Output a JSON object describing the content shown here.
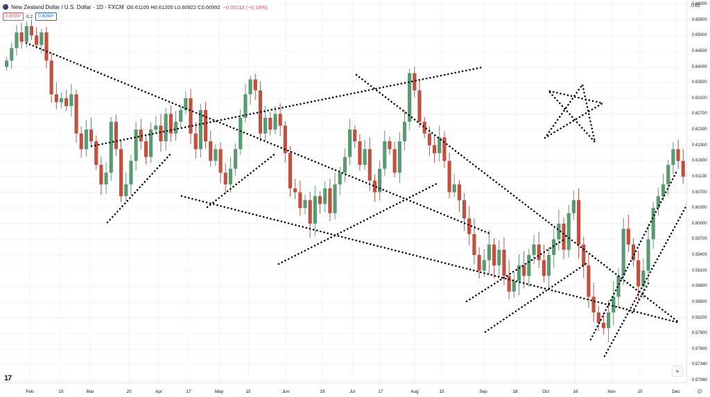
{
  "header": {
    "symbol": "New Zealand Dollar / U.S. Dollar · 1D · FXCM",
    "ohlc": "O0.61105 H0.61205 L0.60922 C0.60992",
    "change": "−0.00113 (−0.18%)"
  },
  "quote": {
    "bid": "0.6099²",
    "spread": "0.2",
    "ask": "0.6099⁴"
  },
  "axis": {
    "currency": "USD"
  },
  "colors": {
    "up": "#5a9a73",
    "down": "#c2503e",
    "grid": "#f0f3fa",
    "line": "#111111"
  },
  "icons": {
    "logo": "tradingview-logo-icon",
    "scroll": "double-chevron-right-icon",
    "settings": "gear-icon"
  },
  "nav": {
    "scroll_symbol": "»",
    "gear_symbol": "⚙",
    "logo_text": "17"
  },
  "chart_data": {
    "type": "candlestick",
    "y_ticks": [
      "0.66000",
      "0.65500",
      "0.65000",
      "0.64500",
      "0.64000",
      "0.63500",
      "0.63100",
      "0.62700",
      "0.62300",
      "0.61900",
      "0.61500",
      "0.61100",
      "0.60700",
      "0.60300",
      "0.60000",
      "0.59700",
      "0.59400",
      "0.59100",
      "0.58800",
      "0.58500",
      "0.58200",
      "0.57900",
      "0.57600",
      "0.57340",
      "0.57080"
    ],
    "x_ticks": [
      "Feb",
      "15",
      "Mar",
      "20",
      "Apr",
      "17",
      "May",
      "15",
      "Jun",
      "19",
      "Jul",
      "17",
      "Aug",
      "15",
      "Sep",
      "18",
      "Oct",
      "16",
      "Nov",
      "15",
      "Dec"
    ],
    "ohlc_closes": [
      0.642,
      0.646,
      0.651,
      0.648,
      0.653,
      0.65,
      0.647,
      0.651,
      0.642,
      0.632,
      0.63,
      0.631,
      0.629,
      0.632,
      0.622,
      0.618,
      0.623,
      0.62,
      0.614,
      0.609,
      0.612,
      0.625,
      0.618,
      0.606,
      0.609,
      0.615,
      0.623,
      0.62,
      0.616,
      0.623,
      0.624,
      0.62,
      0.627,
      0.622,
      0.625,
      0.628,
      0.631,
      0.622,
      0.618,
      0.628,
      0.62,
      0.615,
      0.618,
      0.612,
      0.609,
      0.613,
      0.618,
      0.626,
      0.632,
      0.636,
      0.633,
      0.622,
      0.626,
      0.623,
      0.627,
      0.624,
      0.617,
      0.608,
      0.607,
      0.603,
      0.605,
      0.6,
      0.606,
      0.604,
      0.608,
      0.602,
      0.609,
      0.612,
      0.616,
      0.623,
      0.62,
      0.614,
      0.618,
      0.61,
      0.607,
      0.613,
      0.62,
      0.618,
      0.612,
      0.62,
      0.625,
      0.638,
      0.633,
      0.625,
      0.622,
      0.619,
      0.617,
      0.621,
      0.615,
      0.607,
      0.609,
      0.605,
      0.601,
      0.598,
      0.594,
      0.591,
      0.593,
      0.596,
      0.592,
      0.595,
      0.59,
      0.587,
      0.589,
      0.592,
      0.59,
      0.594,
      0.596,
      0.593,
      0.59,
      0.594,
      0.597,
      0.6,
      0.595,
      0.602,
      0.605,
      0.596,
      0.592,
      0.586,
      0.583,
      0.581,
      0.58,
      0.583,
      0.586,
      0.59,
      0.599,
      0.596,
      0.593,
      0.588,
      0.591,
      0.597,
      0.603,
      0.606,
      0.609,
      0.614,
      0.618,
      0.615,
      0.611,
      0.612
    ]
  }
}
